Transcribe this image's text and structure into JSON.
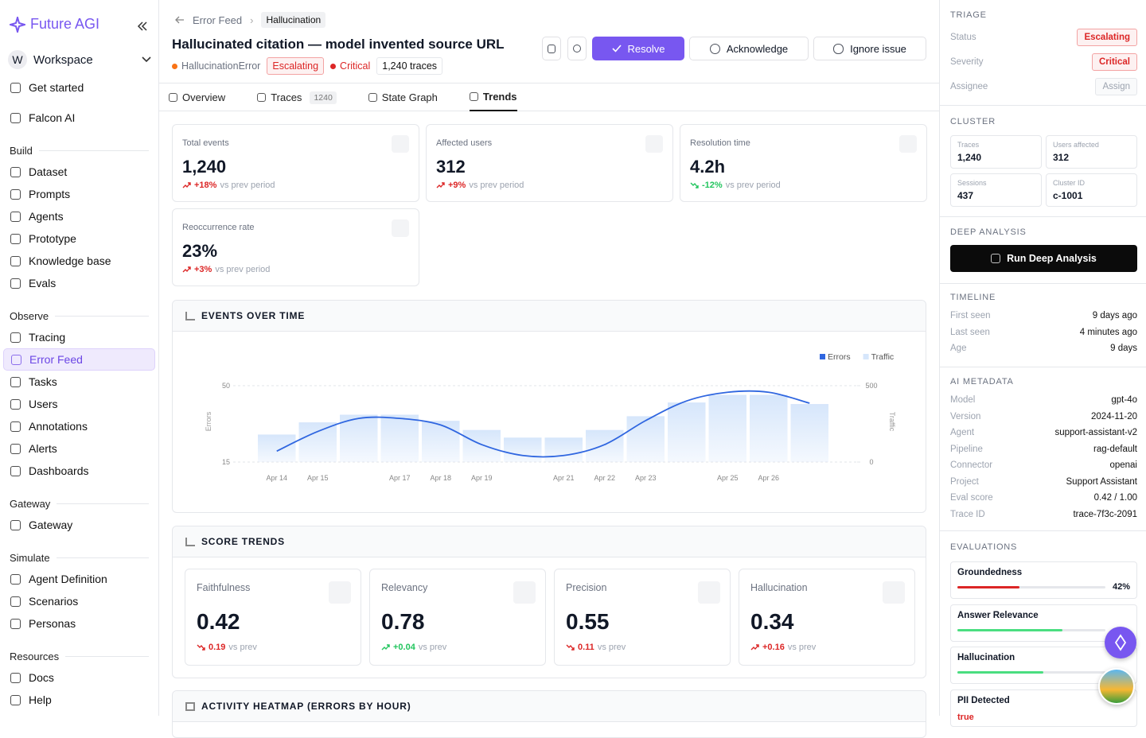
{
  "sidebar": {
    "brand": "Future AGI",
    "workspace_initial": "W",
    "workspace": "Workspace",
    "top_items": [
      "Get started",
      "Falcon AI"
    ],
    "groups": [
      {
        "title": "Build",
        "items": [
          "Dataset",
          "Prompts",
          "Agents",
          "Prototype",
          "Knowledge base",
          "Evals"
        ]
      },
      {
        "title": "Observe",
        "items": [
          "Tracing",
          "Error Feed",
          "Tasks",
          "Users",
          "Annotations",
          "Alerts",
          "Dashboards"
        ],
        "active_item": 1
      },
      {
        "title": "Gateway",
        "items": [
          "Gateway"
        ]
      },
      {
        "title": "Simulate",
        "items": [
          "Agent Definition",
          "Scenarios",
          "Personas"
        ]
      },
      {
        "title": "Resources",
        "items": [
          "Docs",
          "Help"
        ]
      }
    ]
  },
  "header": {
    "breadcrumb": [
      "Error Feed",
      "Hallucination"
    ],
    "title": "Hallucinated citation — model invented source URL",
    "error_type": "HallucinationError",
    "status": "Escalating",
    "severity": "Critical",
    "traces": "1,240 traces",
    "actions": [
      "Resolve",
      "Acknowledge",
      "Ignore issue"
    ]
  },
  "tabs": [
    {
      "label": "Overview"
    },
    {
      "label": "Traces",
      "count": 1240
    },
    {
      "label": "State Graph"
    },
    {
      "label": "Trends",
      "active": true
    }
  ],
  "kpis": [
    {
      "label": "Total events",
      "value": "1,240",
      "change": "+18%",
      "trend": "up",
      "tone": "bad",
      "note": "vs prev period"
    },
    {
      "label": "Affected users",
      "value": "312",
      "change": "+9%",
      "trend": "up",
      "tone": "bad",
      "note": "vs prev period"
    },
    {
      "label": "Resolution time",
      "value": "4.2h",
      "change": "-12%",
      "trend": "down",
      "tone": "good",
      "note": "vs prev period"
    },
    {
      "label": "Reoccurrence rate",
      "value": "23%",
      "change": "+3%",
      "trend": "up",
      "tone": "bad",
      "note": "vs prev period"
    }
  ],
  "chart_data": {
    "type": "bar-line",
    "title": "EVENTS OVER TIME",
    "categories": [
      "Apr 14",
      "Apr 15",
      null,
      "Apr 17",
      "Apr 18",
      "Apr 19",
      null,
      "Apr 21",
      "Apr 22",
      "Apr 23",
      null,
      "Apr 25",
      "Apr 26",
      null
    ],
    "series": [
      {
        "name": "Errors",
        "color": "#2f66e0",
        "type": "line",
        "values": [
          20,
          29,
          35,
          35,
          32,
          23,
          18,
          18,
          23,
          34,
          43,
          47,
          47,
          42
        ]
      },
      {
        "name": "Traffic",
        "color": "#d6e6fb",
        "type": "bar",
        "axis": "y2",
        "values": [
          180,
          260,
          310,
          310,
          270,
          210,
          160,
          160,
          210,
          300,
          390,
          440,
          440,
          380
        ]
      }
    ],
    "ylabel": "Errors",
    "y2label": "Traffic",
    "ylim": [
      15,
      50
    ],
    "yticks": [
      15,
      50
    ],
    "y2lim": [
      0,
      500
    ],
    "y2ticks": [
      0,
      500
    ],
    "grid": true,
    "legend": "top-right"
  },
  "score_trends": {
    "title": "SCORE TRENDS",
    "cards": [
      {
        "label": "Faithfulness",
        "value": "0.42",
        "change": "0.19",
        "trend": "down",
        "tone": "bad",
        "note": "vs prev"
      },
      {
        "label": "Relevancy",
        "value": "0.78",
        "change": "+0.04",
        "trend": "up",
        "tone": "good",
        "note": "vs prev"
      },
      {
        "label": "Precision",
        "value": "0.55",
        "change": "0.11",
        "trend": "down",
        "tone": "bad",
        "note": "vs prev"
      },
      {
        "label": "Hallucination",
        "value": "0.34",
        "change": "+0.16",
        "trend": "up",
        "tone": "bad",
        "note": "vs prev"
      }
    ]
  },
  "heatmap": {
    "title": "ACTIVITY HEATMAP (ERRORS BY HOUR)"
  },
  "panel": {
    "triage": {
      "title": "TRIAGE",
      "rows": [
        {
          "label": "Status",
          "value": "Escalating"
        },
        {
          "label": "Severity",
          "value": "Critical"
        },
        {
          "label": "Assignee",
          "value": "Assign"
        }
      ]
    },
    "cluster": {
      "title": "CLUSTER",
      "cells": [
        {
          "label": "Traces",
          "value": "1,240"
        },
        {
          "label": "Users affected",
          "value": "312"
        },
        {
          "label": "Sessions",
          "value": "437"
        },
        {
          "label": "Cluster ID",
          "value": "c-1001"
        }
      ]
    },
    "deep_analysis": {
      "title": "DEEP ANALYSIS",
      "button": "Run Deep Analysis"
    },
    "timeline": {
      "title": "TIMELINE",
      "rows": [
        {
          "label": "First seen",
          "value": "9 days ago"
        },
        {
          "label": "Last seen",
          "value": "4 minutes ago"
        },
        {
          "label": "Age",
          "value": "9 days"
        }
      ]
    },
    "metadata": {
      "title": "AI METADATA",
      "rows": [
        {
          "label": "Model",
          "value": "gpt-4o"
        },
        {
          "label": "Version",
          "value": "2024-11-20"
        },
        {
          "label": "Agent",
          "value": "support-assistant-v2"
        },
        {
          "label": "Pipeline",
          "value": "rag-default"
        },
        {
          "label": "Connector",
          "value": "openai"
        },
        {
          "label": "Project",
          "value": "Support Assistant"
        },
        {
          "label": "Eval score",
          "value": "0.42 / 1.00"
        },
        {
          "label": "Trace ID",
          "value": "trace-7f3c-2091"
        }
      ]
    },
    "evaluations": {
      "title": "EVALUATIONS",
      "items": [
        {
          "name": "Groundedness",
          "value": 42,
          "label": "42%",
          "color": "#dc2626"
        },
        {
          "name": "Answer Relevance",
          "value": 71,
          "color": "#4ade80"
        },
        {
          "name": "Hallucination",
          "value": 58,
          "color": "#4ade80"
        },
        {
          "name": "PII Detected",
          "label": "true",
          "color": "#dc2626"
        }
      ]
    }
  }
}
